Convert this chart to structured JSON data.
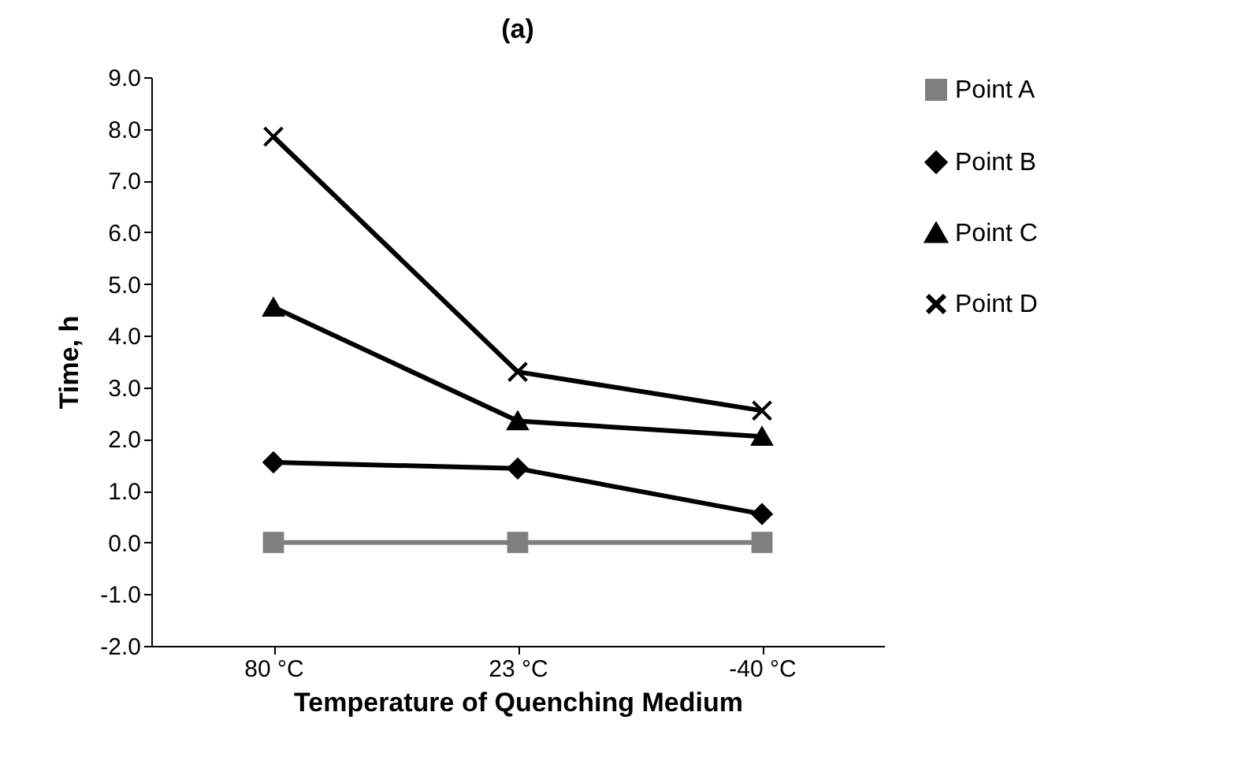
{
  "chart_data": {
    "type": "line",
    "title": "(a)",
    "xlabel": "Temperature of Quenching Medium",
    "ylabel": "Time, h",
    "categories": [
      "80 °C",
      "23 °C",
      "-40 °C"
    ],
    "series": [
      {
        "name": "Point A",
        "color": "#7f7f7f",
        "marker": "square",
        "values": [
          0,
          0,
          0
        ]
      },
      {
        "name": "Point B",
        "color": "#000000",
        "marker": "diamond",
        "values": [
          1.55,
          1.43,
          0.55
        ]
      },
      {
        "name": "Point C",
        "color": "#000000",
        "marker": "triangle",
        "values": [
          4.55,
          2.35,
          2.05
        ]
      },
      {
        "name": "Point D",
        "color": "#000000",
        "marker": "cross",
        "values": [
          7.85,
          3.3,
          2.55
        ]
      }
    ],
    "ylim": [
      -2,
      9
    ],
    "yticks": [
      {
        "value": -2,
        "label": "-2.0"
      },
      {
        "value": -1,
        "label": "-1.0"
      },
      {
        "value": 0,
        "label": "0.0"
      },
      {
        "value": 1,
        "label": "1.0"
      },
      {
        "value": 2,
        "label": "2.0"
      },
      {
        "value": 3,
        "label": "3.0"
      },
      {
        "value": 4,
        "label": "4.0"
      },
      {
        "value": 5,
        "label": "5.0"
      },
      {
        "value": 6,
        "label": "6.0"
      },
      {
        "value": 7,
        "label": "7.0"
      },
      {
        "value": 8,
        "label": "8.0"
      },
      {
        "value": 9,
        "label": "9.0"
      }
    ],
    "grid": false,
    "legend": "right"
  }
}
